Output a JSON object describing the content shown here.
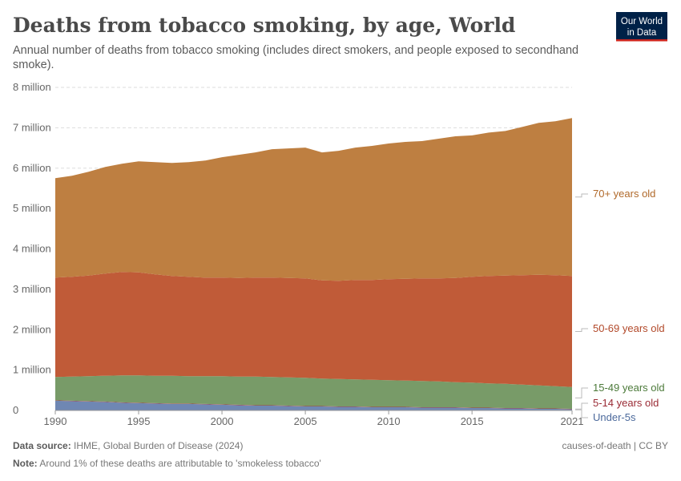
{
  "title": "Deaths from tobacco smoking, by age, World",
  "subtitle_line1": "Annual number of deaths from tobacco smoking (includes direct smokers, and people exposed to secondhand",
  "subtitle_line2": "smoke).",
  "logo": {
    "line1": "Our World",
    "line2": "in Data",
    "bg": "#002147",
    "accent": "#ce261e"
  },
  "footer": {
    "source_label": "Data source:",
    "source": " IHME, Global Burden of Disease (2024)",
    "note_label": "Note:",
    "note": " Around 1% of these deaths are attributable to 'smokeless tobacco'",
    "right": "causes-of-death | CC BY"
  },
  "chart_data": {
    "type": "area",
    "stacked": true,
    "title": "Deaths from tobacco smoking, by age, World",
    "ylim": [
      0,
      8000000
    ],
    "y_ticks": [
      0,
      1000000,
      2000000,
      3000000,
      4000000,
      5000000,
      6000000,
      7000000,
      8000000
    ],
    "y_tick_labels": [
      "0",
      "1 million",
      "2 million",
      "3 million",
      "4 million",
      "5 million",
      "6 million",
      "7 million",
      "8 million"
    ],
    "x_ticks": [
      1990,
      1995,
      2000,
      2005,
      2010,
      2015,
      2021
    ],
    "x_tick_labels": [
      "1990",
      "1995",
      "2000",
      "2005",
      "2010",
      "2015",
      "2021"
    ],
    "grid": "horizontal dashed",
    "legend_placement": "right (inline labels)",
    "unit": "million deaths",
    "x": [
      1990,
      1991,
      1992,
      1993,
      1994,
      1995,
      1996,
      1997,
      1998,
      1999,
      2000,
      2001,
      2002,
      2003,
      2004,
      2005,
      2006,
      2007,
      2008,
      2009,
      2010,
      2011,
      2012,
      2013,
      2014,
      2015,
      2016,
      2017,
      2018,
      2019,
      2020,
      2021
    ],
    "series": [
      {
        "name": "Under-5s",
        "color": "#6f87b3",
        "label_color": "#4c6a9c",
        "values": [
          0.24,
          0.23,
          0.22,
          0.21,
          0.19,
          0.18,
          0.17,
          0.16,
          0.16,
          0.15,
          0.14,
          0.13,
          0.12,
          0.12,
          0.11,
          0.1,
          0.1,
          0.09,
          0.09,
          0.08,
          0.08,
          0.08,
          0.07,
          0.07,
          0.07,
          0.06,
          0.06,
          0.05,
          0.05,
          0.04,
          0.04,
          0.03
        ]
      },
      {
        "name": "5-14 years old",
        "color": "#a53c44",
        "label_color": "#9a2b35",
        "values": [
          0.01,
          0.01,
          0.01,
          0.01,
          0.01,
          0.01,
          0.01,
          0.01,
          0.01,
          0.01,
          0.01,
          0.01,
          0.01,
          0.01,
          0.01,
          0.01,
          0.01,
          0.01,
          0.01,
          0.01,
          0.01,
          0.01,
          0.01,
          0.01,
          0.01,
          0.01,
          0.01,
          0.01,
          0.01,
          0.01,
          0.01,
          0.01
        ]
      },
      {
        "name": "15-49 years old",
        "color": "#789b68",
        "label_color": "#4c7a3a",
        "values": [
          0.58,
          0.6,
          0.62,
          0.64,
          0.67,
          0.68,
          0.68,
          0.69,
          0.68,
          0.69,
          0.7,
          0.7,
          0.71,
          0.7,
          0.7,
          0.7,
          0.68,
          0.68,
          0.67,
          0.67,
          0.66,
          0.65,
          0.65,
          0.64,
          0.62,
          0.62,
          0.6,
          0.6,
          0.58,
          0.57,
          0.55,
          0.54
        ]
      },
      {
        "name": "50-69 years old",
        "color": "#c05b38",
        "label_color": "#b2492a",
        "values": [
          2.46,
          2.47,
          2.49,
          2.53,
          2.56,
          2.55,
          2.51,
          2.47,
          2.46,
          2.44,
          2.44,
          2.44,
          2.45,
          2.46,
          2.46,
          2.46,
          2.43,
          2.43,
          2.46,
          2.47,
          2.5,
          2.52,
          2.54,
          2.55,
          2.58,
          2.62,
          2.66,
          2.68,
          2.71,
          2.74,
          2.75,
          2.75
        ]
      },
      {
        "name": "70+ years old",
        "color": "#be7f41",
        "label_color": "#b0692a",
        "values": [
          2.46,
          2.5,
          2.57,
          2.64,
          2.68,
          2.75,
          2.78,
          2.8,
          2.84,
          2.9,
          2.98,
          3.05,
          3.1,
          3.18,
          3.21,
          3.24,
          3.17,
          3.22,
          3.28,
          3.32,
          3.36,
          3.39,
          3.4,
          3.46,
          3.51,
          3.5,
          3.55,
          3.58,
          3.67,
          3.76,
          3.81,
          3.91
        ]
      }
    ]
  }
}
